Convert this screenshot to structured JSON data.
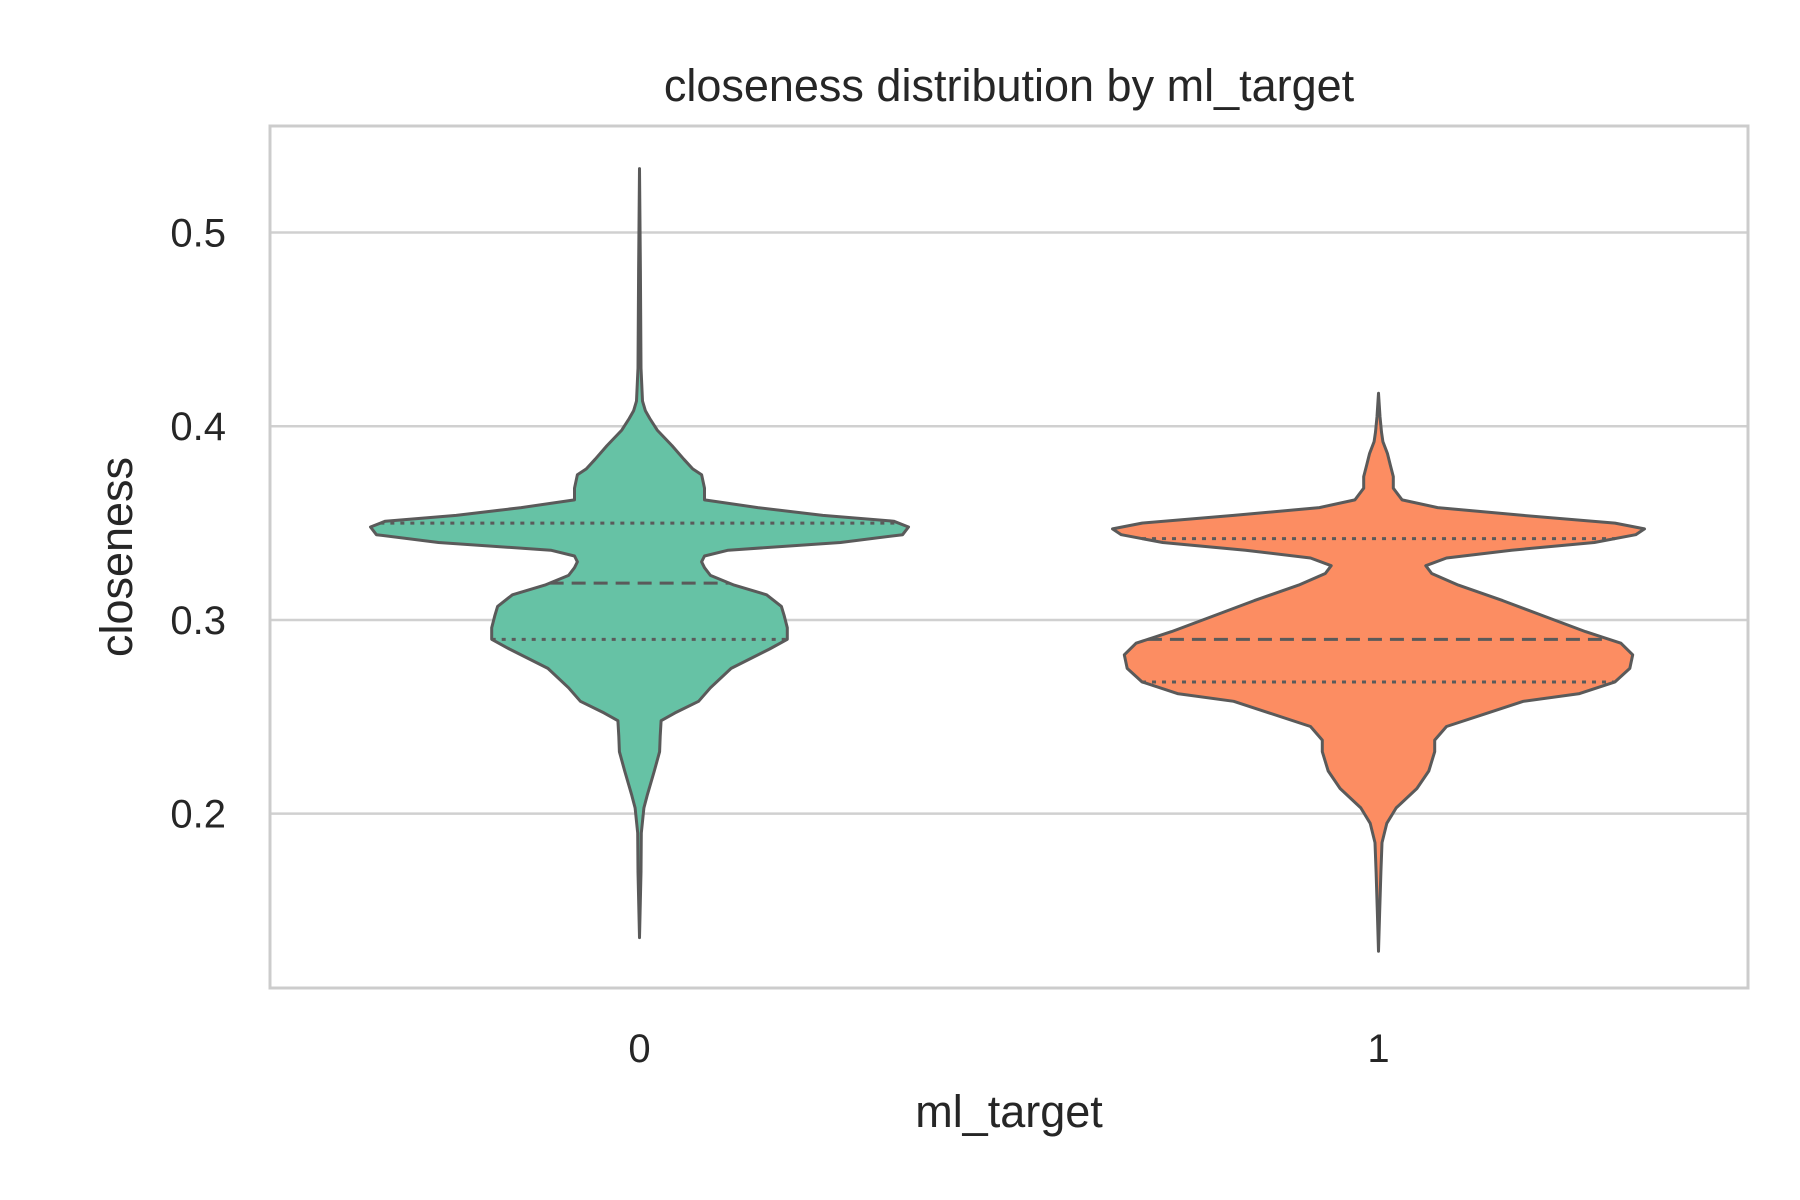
{
  "chart_data": {
    "type": "violin",
    "title": "closeness distribution by ml_target",
    "xlabel": "ml_target",
    "ylabel": "closeness",
    "categories": [
      "0",
      "1"
    ],
    "ylim": [
      0.11,
      0.555
    ],
    "yticks": [
      0.2,
      0.3,
      0.4,
      0.5
    ],
    "ytick_labels": [
      "0.2",
      "0.3",
      "0.4",
      "0.5"
    ],
    "grid": "horizontal",
    "colors": {
      "0": "#66c2a5",
      "1": "#fc8d62",
      "outline": "#5a5a5a",
      "grid": "#d0d0d0",
      "frame": "#cccccc"
    },
    "series": [
      {
        "category": "0",
        "min": 0.136,
        "max": 0.533,
        "quartiles": {
          "q1": 0.29,
          "median": 0.319,
          "q3": 0.35
        },
        "density": [
          [
            0.136,
            0.0
          ],
          [
            0.17,
            0.005
          ],
          [
            0.19,
            0.006
          ],
          [
            0.203,
            0.015
          ],
          [
            0.21,
            0.027
          ],
          [
            0.222,
            0.05
          ],
          [
            0.232,
            0.068
          ],
          [
            0.24,
            0.07
          ],
          [
            0.248,
            0.073
          ],
          [
            0.252,
            0.12
          ],
          [
            0.258,
            0.2
          ],
          [
            0.265,
            0.24
          ],
          [
            0.275,
            0.31
          ],
          [
            0.285,
            0.44
          ],
          [
            0.29,
            0.5
          ],
          [
            0.296,
            0.5
          ],
          [
            0.302,
            0.49
          ],
          [
            0.307,
            0.48
          ],
          [
            0.313,
            0.43
          ],
          [
            0.318,
            0.32
          ],
          [
            0.323,
            0.24
          ],
          [
            0.327,
            0.22
          ],
          [
            0.33,
            0.21
          ],
          [
            0.333,
            0.22
          ],
          [
            0.336,
            0.3
          ],
          [
            0.34,
            0.68
          ],
          [
            0.344,
            0.89
          ],
          [
            0.348,
            0.91
          ],
          [
            0.351,
            0.86
          ],
          [
            0.354,
            0.62
          ],
          [
            0.358,
            0.4
          ],
          [
            0.362,
            0.22
          ],
          [
            0.368,
            0.22
          ],
          [
            0.375,
            0.21
          ],
          [
            0.378,
            0.18
          ],
          [
            0.383,
            0.15
          ],
          [
            0.39,
            0.11
          ],
          [
            0.398,
            0.06
          ],
          [
            0.404,
            0.035
          ],
          [
            0.408,
            0.02
          ],
          [
            0.413,
            0.01
          ],
          [
            0.43,
            0.005
          ],
          [
            0.48,
            0.003
          ],
          [
            0.533,
            0.0
          ]
        ]
      },
      {
        "category": "1",
        "min": 0.129,
        "max": 0.417,
        "quartiles": {
          "q1": 0.268,
          "median": 0.29,
          "q3": 0.342
        },
        "density": [
          [
            0.129,
            0.0
          ],
          [
            0.15,
            0.004
          ],
          [
            0.17,
            0.008
          ],
          [
            0.185,
            0.012
          ],
          [
            0.195,
            0.028
          ],
          [
            0.203,
            0.06
          ],
          [
            0.213,
            0.13
          ],
          [
            0.222,
            0.17
          ],
          [
            0.232,
            0.19
          ],
          [
            0.238,
            0.19
          ],
          [
            0.245,
            0.23
          ],
          [
            0.252,
            0.37
          ],
          [
            0.258,
            0.49
          ],
          [
            0.262,
            0.68
          ],
          [
            0.268,
            0.8
          ],
          [
            0.275,
            0.85
          ],
          [
            0.282,
            0.86
          ],
          [
            0.288,
            0.82
          ],
          [
            0.294,
            0.7
          ],
          [
            0.302,
            0.56
          ],
          [
            0.31,
            0.42
          ],
          [
            0.318,
            0.27
          ],
          [
            0.324,
            0.18
          ],
          [
            0.328,
            0.16
          ],
          [
            0.332,
            0.23
          ],
          [
            0.336,
            0.45
          ],
          [
            0.34,
            0.73
          ],
          [
            0.344,
            0.87
          ],
          [
            0.347,
            0.9
          ],
          [
            0.35,
            0.8
          ],
          [
            0.354,
            0.49
          ],
          [
            0.358,
            0.2
          ],
          [
            0.362,
            0.08
          ],
          [
            0.368,
            0.05
          ],
          [
            0.374,
            0.05
          ],
          [
            0.38,
            0.04
          ],
          [
            0.386,
            0.03
          ],
          [
            0.392,
            0.015
          ],
          [
            0.397,
            0.01
          ],
          [
            0.405,
            0.005
          ],
          [
            0.417,
            0.0
          ]
        ]
      }
    ]
  }
}
